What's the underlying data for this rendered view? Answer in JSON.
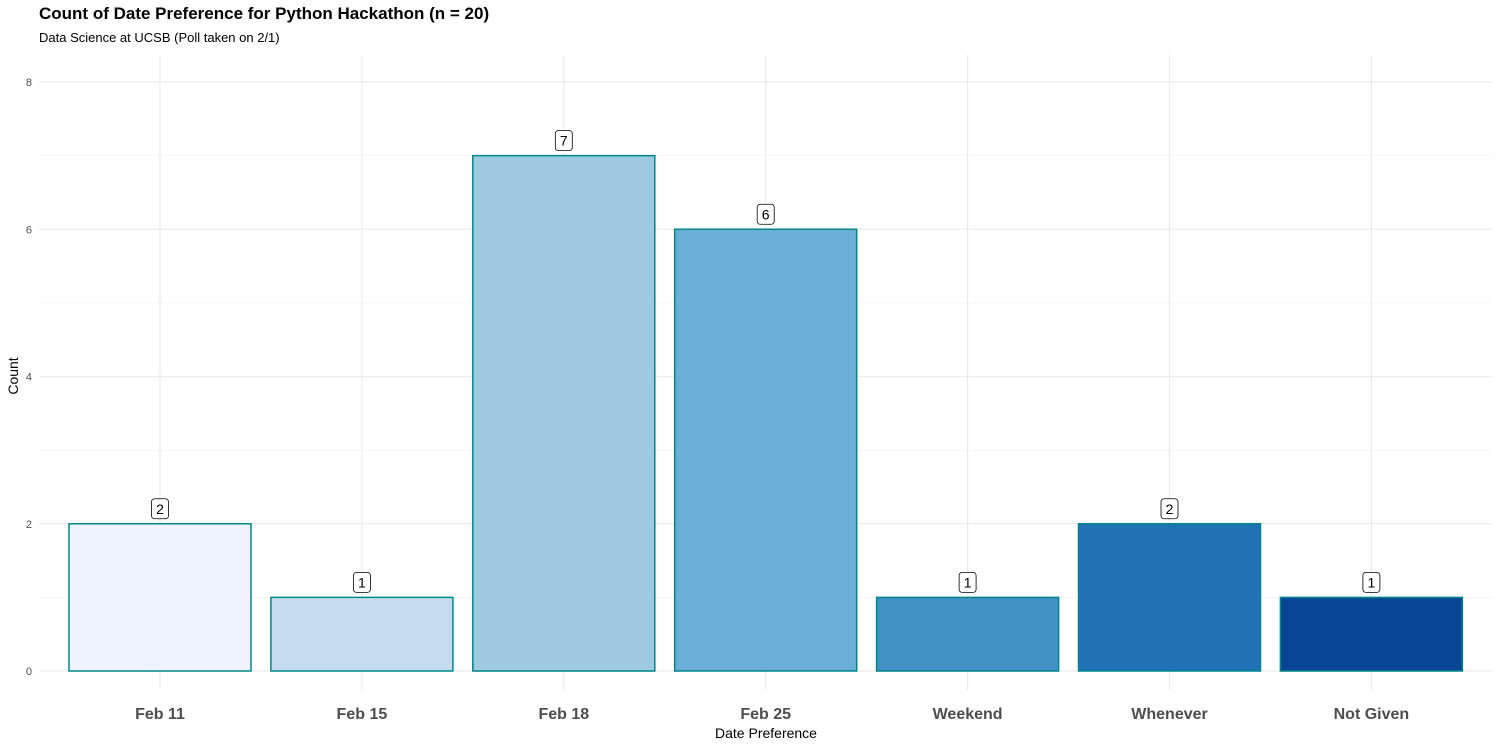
{
  "chart_data": {
    "type": "bar",
    "title": "Count of Date Preference for Python Hackathon (n = 20)",
    "subtitle": "Data Science at UCSB (Poll taken on 2/1)",
    "xlabel": "Date Preference",
    "ylabel": "Count",
    "categories": [
      "Feb 11",
      "Feb 15",
      "Feb 18",
      "Feb 25",
      "Weekend",
      "Whenever",
      "Not Given"
    ],
    "values": [
      2,
      1,
      7,
      6,
      1,
      2,
      1
    ],
    "ylim": [
      0,
      8
    ],
    "yticks": [
      0,
      2,
      4,
      6,
      8
    ],
    "grid": true,
    "legend": "none",
    "bar_colors": [
      "#EFF3FF",
      "#C6DBEF",
      "#9ECAE1",
      "#6BAED6",
      "#4292C6",
      "#2171B5",
      "#084594"
    ],
    "bar_outline": "#00868B",
    "data_labels": [
      "2",
      "1",
      "7",
      "6",
      "1",
      "2",
      "1"
    ]
  }
}
